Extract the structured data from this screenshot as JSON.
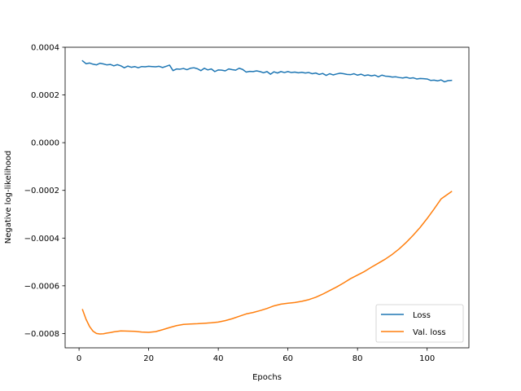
{
  "chart_data": {
    "type": "line",
    "title": "",
    "xlabel": "Epochs",
    "ylabel": "Negative log-likelihood",
    "xlim": [
      -4,
      112
    ],
    "ylim": [
      -0.00086,
      0.0004
    ],
    "xticks": [
      0,
      20,
      40,
      60,
      80,
      100
    ],
    "xtick_labels": [
      "0",
      "20",
      "40",
      "60",
      "80",
      "100"
    ],
    "yticks": [
      0.0004,
      0.0002,
      0.0,
      -0.0002,
      -0.0004,
      -0.0006,
      -0.0008
    ],
    "ytick_labels": [
      "0.0004",
      "0.0002",
      "0.0000",
      "−0.0002",
      "−0.0004",
      "−0.0006",
      "−0.0008"
    ],
    "grid": false,
    "legend_position": "bottom-right",
    "series": [
      {
        "name": "Loss",
        "color": "#1f77b4",
        "x": [
          1,
          2,
          3,
          4,
          5,
          6,
          7,
          8,
          9,
          10,
          11,
          12,
          13,
          14,
          15,
          16,
          17,
          18,
          19,
          20,
          21,
          22,
          23,
          24,
          25,
          26,
          27,
          28,
          29,
          30,
          31,
          32,
          33,
          34,
          35,
          36,
          37,
          38,
          39,
          40,
          41,
          42,
          43,
          44,
          45,
          46,
          47,
          48,
          49,
          50,
          51,
          52,
          53,
          54,
          55,
          56,
          57,
          58,
          59,
          60,
          61,
          62,
          63,
          64,
          65,
          66,
          67,
          68,
          69,
          70,
          71,
          72,
          73,
          74,
          75,
          76,
          77,
          78,
          79,
          80,
          81,
          82,
          83,
          84,
          85,
          86,
          87,
          88,
          89,
          90,
          91,
          92,
          93,
          94,
          95,
          96,
          97,
          98,
          99,
          100,
          101,
          102,
          103,
          104,
          105,
          106,
          107
        ],
        "y": [
          0.000343,
          0.000331,
          0.000334,
          0.000329,
          0.000326,
          0.000333,
          0.00033,
          0.000326,
          0.000328,
          0.000322,
          0.000327,
          0.000322,
          0.000314,
          0.000321,
          0.000316,
          0.000319,
          0.000314,
          0.000319,
          0.000318,
          0.00032,
          0.000319,
          0.000318,
          0.00032,
          0.000315,
          0.00032,
          0.000325,
          0.000302,
          0.000309,
          0.000308,
          0.000311,
          0.000306,
          0.000312,
          0.000314,
          0.00031,
          0.000302,
          0.000312,
          0.000305,
          0.000309,
          0.000298,
          0.000305,
          0.000304,
          0.000301,
          0.000309,
          0.000306,
          0.000304,
          0.000312,
          0.000307,
          0.000296,
          0.000299,
          0.000298,
          0.000301,
          0.000298,
          0.000293,
          0.000298,
          0.000287,
          0.000297,
          0.000292,
          0.000298,
          0.000294,
          0.000298,
          0.000294,
          0.000296,
          0.000293,
          0.000295,
          0.000292,
          0.000294,
          0.000289,
          0.000292,
          0.000286,
          0.00029,
          0.000282,
          0.000289,
          0.000284,
          0.000288,
          0.000291,
          0.000289,
          0.000286,
          0.000285,
          0.000289,
          0.000283,
          0.000287,
          0.000281,
          0.000284,
          0.00028,
          0.000283,
          0.000276,
          0.000283,
          0.000279,
          0.000278,
          0.000275,
          0.000276,
          0.000273,
          0.000271,
          0.000274,
          0.00027,
          0.000272,
          0.000267,
          0.000269,
          0.000268,
          0.000267,
          0.000261,
          0.000262,
          0.000259,
          0.000263,
          0.000255,
          0.00026,
          0.000261
        ]
      },
      {
        "name": "Val. loss",
        "color": "#ff7f0e",
        "x": [
          1,
          2,
          3,
          4,
          5,
          6,
          7,
          8,
          9,
          10,
          12,
          14,
          16,
          18,
          20,
          22,
          24,
          26,
          28,
          30,
          32,
          34,
          36,
          38,
          40,
          42,
          44,
          46,
          48,
          50,
          52,
          54,
          56,
          58,
          60,
          62,
          64,
          66,
          68,
          70,
          72,
          74,
          76,
          78,
          80,
          82,
          84,
          86,
          88,
          90,
          92,
          94,
          96,
          98,
          100,
          102,
          104,
          107
        ],
        "y": [
          -0.0007,
          -0.00074,
          -0.00077,
          -0.00079,
          -0.0008,
          -0.000802,
          -0.000801,
          -0.000798,
          -0.000796,
          -0.000793,
          -0.000789,
          -0.00079,
          -0.000791,
          -0.000794,
          -0.000795,
          -0.000792,
          -0.000784,
          -0.000775,
          -0.000767,
          -0.000762,
          -0.00076,
          -0.000759,
          -0.000757,
          -0.000755,
          -0.000752,
          -0.000746,
          -0.000738,
          -0.000728,
          -0.000718,
          -0.000712,
          -0.000704,
          -0.000695,
          -0.000684,
          -0.000677,
          -0.000673,
          -0.00067,
          -0.000665,
          -0.000658,
          -0.000648,
          -0.000635,
          -0.00062,
          -0.000605,
          -0.000588,
          -0.00057,
          -0.000555,
          -0.00054,
          -0.000522,
          -0.000505,
          -0.000488,
          -0.000468,
          -0.000445,
          -0.000418,
          -0.000388,
          -0.000355,
          -0.000318,
          -0.000278,
          -0.000236,
          -0.000205
        ]
      }
    ]
  }
}
